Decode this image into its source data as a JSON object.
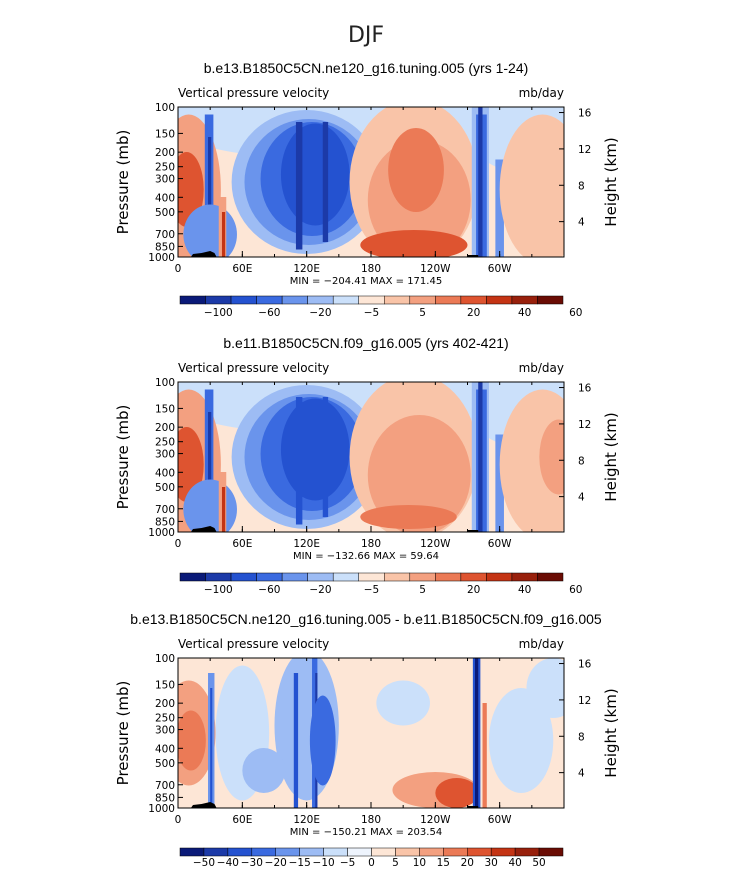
{
  "figure_title": "DJF",
  "chart_data": [
    {
      "type": "heatmap",
      "title": "b.e13.B1850C5CN.ne120_g16.tuning.005 (yrs 1-24)",
      "variable_label": "Vertical pressure velocity",
      "units_label": "mb/day",
      "ylabel": "Pressure (mb)",
      "ylabel_right": "Height (km)",
      "yticks": [
        "100",
        "150",
        "200",
        "250",
        "300",
        "400",
        "500",
        "700",
        "850",
        "1000"
      ],
      "ytick_values": [
        100,
        150,
        200,
        250,
        300,
        400,
        500,
        700,
        850,
        1000
      ],
      "ylim": [
        1000,
        100
      ],
      "yticks_right": [
        "16",
        "12",
        "8",
        "4"
      ],
      "xticks": [
        "0",
        "60E",
        "120E",
        "180",
        "120W",
        "60W"
      ],
      "xtick_values": [
        0,
        60,
        120,
        180,
        240,
        300
      ],
      "xlim": [
        0,
        360
      ],
      "min_max_text": "MIN = −204.41   MAX = 171.45",
      "colorbar_labels": [
        "−100",
        "−60",
        "−20",
        "−5",
        "5",
        "20",
        "40",
        "60"
      ]
    },
    {
      "type": "heatmap",
      "title": "b.e11.B1850C5CN.f09_g16.005 (yrs 402-421)",
      "variable_label": "Vertical pressure velocity",
      "units_label": "mb/day",
      "ylabel": "Pressure (mb)",
      "ylabel_right": "Height (km)",
      "yticks": [
        "100",
        "150",
        "200",
        "250",
        "300",
        "400",
        "500",
        "700",
        "850",
        "1000"
      ],
      "ytick_values": [
        100,
        150,
        200,
        250,
        300,
        400,
        500,
        700,
        850,
        1000
      ],
      "ylim": [
        1000,
        100
      ],
      "yticks_right": [
        "16",
        "12",
        "8",
        "4"
      ],
      "xticks": [
        "0",
        "60E",
        "120E",
        "180",
        "120W",
        "60W"
      ],
      "xtick_values": [
        0,
        60,
        120,
        180,
        240,
        300
      ],
      "xlim": [
        0,
        360
      ],
      "min_max_text": "MIN = −132.66   MAX =  59.64",
      "colorbar_labels": [
        "−100",
        "−60",
        "−20",
        "−5",
        "5",
        "20",
        "40",
        "60"
      ]
    },
    {
      "type": "heatmap",
      "title": "b.e13.B1850C5CN.ne120_g16.tuning.005 - b.e11.B1850C5CN.f09_g16.005",
      "variable_label": "Vertical pressure velocity",
      "units_label": "mb/day",
      "ylabel": "Pressure (mb)",
      "ylabel_right": "Height (km)",
      "yticks": [
        "100",
        "150",
        "200",
        "250",
        "300",
        "400",
        "500",
        "700",
        "850",
        "1000"
      ],
      "ytick_values": [
        100,
        150,
        200,
        250,
        300,
        400,
        500,
        700,
        850,
        1000
      ],
      "ylim": [
        1000,
        100
      ],
      "yticks_right": [
        "16",
        "12",
        "8",
        "4"
      ],
      "xticks": [
        "0",
        "60E",
        "120E",
        "180",
        "120W",
        "60W"
      ],
      "xtick_values": [
        0,
        60,
        120,
        180,
        240,
        300
      ],
      "xlim": [
        0,
        360
      ],
      "min_max_text": "MIN = −150.21   MAX = 203.54",
      "colorbar_labels": [
        "−50",
        "−40",
        "−30",
        "−20",
        "−15",
        "−10",
        "−5",
        "0",
        "5",
        "10",
        "15",
        "20",
        "30",
        "40",
        "50"
      ]
    }
  ],
  "colorbar_colors": [
    "#0a1a78",
    "#1c3aa8",
    "#2452d0",
    "#3a6ae0",
    "#6a94ec",
    "#9dbcf4",
    "#cbe0fa",
    "#fde6d6",
    "#f9c4a8",
    "#f3a080",
    "#eb7a56",
    "#de5430",
    "#c43414",
    "#98200c",
    "#6a0c04"
  ],
  "colorbar_colors_diff": [
    "#0a1a78",
    "#1c3aa8",
    "#2452d0",
    "#3a6ae0",
    "#6a94ec",
    "#9dbcf4",
    "#cbe0fa",
    "#eef4fd",
    "#fde6d6",
    "#f9c4a8",
    "#f3a080",
    "#eb7a56",
    "#de5430",
    "#c43414",
    "#98200c",
    "#6a0c04"
  ]
}
